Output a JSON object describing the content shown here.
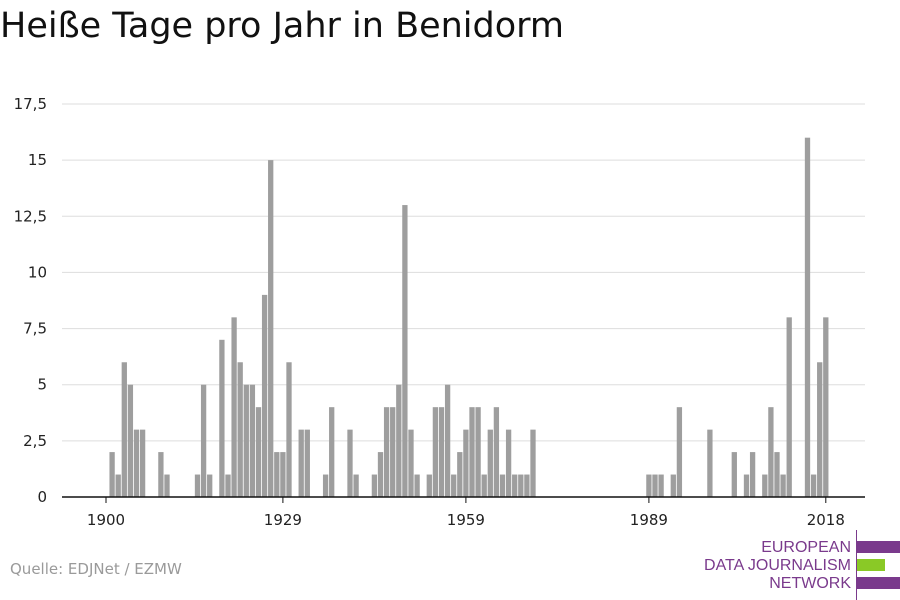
{
  "chart_data": {
    "type": "bar",
    "title": "Heiße Tage pro Jahr in Benidorm",
    "xlabel": "",
    "ylabel": "",
    "x_range": [
      1900,
      2018
    ],
    "x_ticks": [
      "1900",
      "1929",
      "1959",
      "1989",
      "2018"
    ],
    "y_ticks": [
      "0",
      "2,5",
      "5",
      "7,5",
      "10",
      "12,5",
      "15",
      "17,5"
    ],
    "ylim": [
      0,
      17.5
    ],
    "grid": true,
    "bar_color": "#9e9e9e",
    "values": [
      0,
      2,
      1,
      6,
      5,
      3,
      3,
      0,
      0,
      2,
      1,
      0,
      0,
      0,
      0,
      1,
      5,
      1,
      0,
      7,
      1,
      8,
      6,
      5,
      5,
      4,
      9,
      15,
      2,
      2,
      6,
      0,
      3,
      3,
      0,
      0,
      1,
      4,
      0,
      0,
      3,
      1,
      0,
      0,
      1,
      2,
      4,
      4,
      5,
      13,
      3,
      1,
      0,
      1,
      4,
      4,
      5,
      1,
      2,
      3,
      4,
      4,
      1,
      3,
      4,
      1,
      3,
      1,
      1,
      1,
      3,
      0,
      0,
      0,
      0,
      0,
      0,
      0,
      0,
      0,
      0,
      0,
      0,
      0,
      0,
      0,
      0,
      0,
      0,
      1,
      1,
      1,
      0,
      1,
      4,
      0,
      0,
      0,
      0,
      3,
      0,
      0,
      0,
      2,
      0,
      1,
      2,
      0,
      1,
      4,
      2,
      1,
      8,
      0,
      0,
      16,
      1,
      6,
      8
    ]
  },
  "source": "Quelle: EDJNet / EZMW",
  "logo": {
    "lines": [
      "EUROPEAN",
      "DATA JOURNALISM",
      "NETWORK"
    ],
    "colors": {
      "purple": "#7a3a8c",
      "green": "#8ac926"
    }
  }
}
